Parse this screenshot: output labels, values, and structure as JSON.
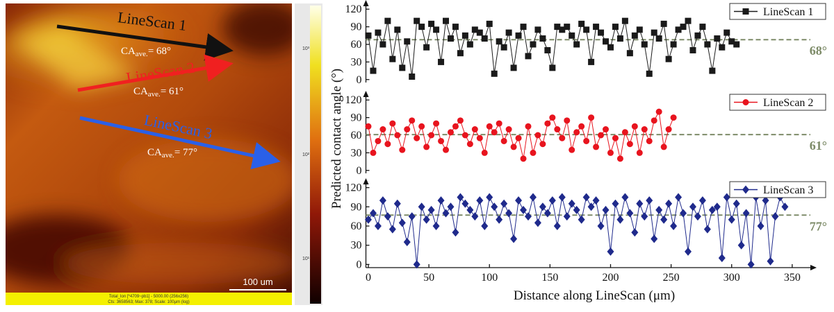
{
  "image": {
    "annotations": [
      {
        "name": "LineScan 1",
        "ca": "CA",
        "ca_sub": "ave.",
        "ca_value": "= 68°"
      },
      {
        "name": "LineScan 2",
        "ca": "CA",
        "ca_sub": "ave.",
        "ca_value": "= 61°"
      },
      {
        "name": "LineScan 3",
        "ca": "CA",
        "ca_sub": "ave.",
        "ca_value": "= 77°"
      }
    ],
    "scale_bar": "100 um",
    "colorbar_labels": [
      "10³",
      "10²",
      "10¹"
    ],
    "footer": [
      "Total_Ion [*4709~pb1] - 5000.00 (256x256)",
      "Cts: 3658563; Max: 378; Scale: 100µm (log)"
    ]
  },
  "axes": {
    "x_label": "Distance along LineScan (μm)",
    "y_label": "Predicted contact angle (°)"
  },
  "chart_data": [
    {
      "type": "line",
      "legend": "upper right",
      "xlim": [
        -2,
        365
      ],
      "ylim": [
        -5,
        125
      ],
      "yticks": [
        0,
        30,
        60,
        90,
        120
      ],
      "x": [
        0,
        4,
        8,
        12,
        16,
        20,
        24,
        28,
        32,
        36,
        40,
        44,
        48,
        52,
        56,
        60,
        64,
        68,
        72,
        76,
        80,
        84,
        88,
        92,
        96,
        100,
        104,
        108,
        112,
        116,
        120,
        124,
        128,
        132,
        136,
        140,
        144,
        148,
        152,
        156,
        160,
        164,
        168,
        172,
        176,
        180,
        184,
        188,
        192,
        196,
        200,
        204,
        208,
        212,
        216,
        220,
        224,
        228,
        232,
        236,
        240,
        244,
        248,
        252,
        256,
        260,
        264,
        268,
        272,
        276,
        280,
        284,
        288,
        292,
        296,
        300,
        304
      ],
      "series": [
        {
          "name": "LineScan 1",
          "color": "#1a1a1a",
          "marker": "square",
          "values": [
            75,
            15,
            80,
            60,
            100,
            35,
            85,
            20,
            65,
            5,
            100,
            90,
            55,
            95,
            85,
            30,
            100,
            70,
            90,
            45,
            75,
            60,
            85,
            80,
            70,
            95,
            10,
            65,
            55,
            80,
            20,
            75,
            90,
            40,
            60,
            85,
            70,
            50,
            20,
            90,
            85,
            90,
            75,
            60,
            95,
            85,
            30,
            90,
            80,
            65,
            55,
            90,
            70,
            100,
            45,
            75,
            85,
            60,
            10,
            80,
            70,
            95,
            35,
            60,
            85,
            90,
            100,
            50,
            75,
            90,
            60,
            15,
            70,
            55,
            80,
            65,
            60
          ]
        }
      ],
      "reference_line": {
        "value": 68,
        "label": "68°",
        "color": "#7d8b68"
      }
    },
    {
      "type": "line",
      "legend": "upper right",
      "xlim": [
        -2,
        365
      ],
      "ylim": [
        -5,
        125
      ],
      "yticks": [
        0,
        30,
        60,
        90,
        120
      ],
      "x": [
        0,
        4,
        8,
        12,
        16,
        20,
        24,
        28,
        32,
        36,
        40,
        44,
        48,
        52,
        56,
        60,
        64,
        68,
        72,
        76,
        80,
        84,
        88,
        92,
        96,
        100,
        104,
        108,
        112,
        116,
        120,
        124,
        128,
        132,
        136,
        140,
        144,
        148,
        152,
        156,
        160,
        164,
        168,
        172,
        176,
        180,
        184,
        188,
        192,
        196,
        200,
        204,
        208,
        212,
        216,
        220,
        224,
        228,
        232,
        236,
        240,
        244,
        248,
        252
      ],
      "series": [
        {
          "name": "LineScan 2",
          "color": "#e8141e",
          "marker": "circle",
          "values": [
            75,
            30,
            50,
            70,
            45,
            80,
            60,
            35,
            70,
            85,
            55,
            75,
            40,
            60,
            80,
            50,
            35,
            65,
            75,
            85,
            60,
            45,
            70,
            55,
            30,
            75,
            65,
            80,
            50,
            70,
            40,
            55,
            20,
            75,
            30,
            60,
            45,
            80,
            90,
            70,
            55,
            85,
            35,
            65,
            75,
            50,
            90,
            40,
            60,
            70,
            30,
            55,
            20,
            65,
            45,
            75,
            30,
            70,
            50,
            85,
            100,
            40,
            70,
            90
          ]
        }
      ],
      "reference_line": {
        "value": 61,
        "label": "61°",
        "color": "#7d8b68"
      }
    },
    {
      "type": "line",
      "legend": "upper right",
      "xlim": [
        -2,
        365
      ],
      "ylim": [
        -5,
        125
      ],
      "yticks": [
        0,
        30,
        60,
        90,
        120
      ],
      "xticks": [
        0,
        50,
        100,
        150,
        200,
        250,
        300,
        350
      ],
      "x": [
        0,
        4,
        8,
        12,
        16,
        20,
        24,
        28,
        32,
        36,
        40,
        44,
        48,
        52,
        56,
        60,
        64,
        68,
        72,
        76,
        80,
        84,
        88,
        92,
        96,
        100,
        104,
        108,
        112,
        116,
        120,
        124,
        128,
        132,
        136,
        140,
        144,
        148,
        152,
        156,
        160,
        164,
        168,
        172,
        176,
        180,
        184,
        188,
        192,
        196,
        200,
        204,
        208,
        212,
        216,
        220,
        224,
        228,
        232,
        236,
        240,
        244,
        248,
        252,
        256,
        260,
        264,
        268,
        272,
        276,
        280,
        284,
        288,
        292,
        296,
        300,
        304,
        308,
        312,
        316,
        320,
        324,
        328,
        332,
        336,
        340,
        344
      ],
      "series": [
        {
          "name": "LineScan 3",
          "color": "#1f2a8c",
          "marker": "diamond",
          "values": [
            70,
            80,
            60,
            100,
            75,
            55,
            95,
            65,
            35,
            75,
            0,
            90,
            70,
            85,
            60,
            100,
            80,
            90,
            50,
            105,
            95,
            85,
            75,
            100,
            60,
            105,
            90,
            70,
            95,
            80,
            40,
            100,
            85,
            75,
            105,
            65,
            90,
            80,
            100,
            60,
            105,
            75,
            95,
            85,
            70,
            105,
            90,
            100,
            60,
            85,
            20,
            95,
            70,
            105,
            80,
            50,
            95,
            75,
            100,
            40,
            85,
            70,
            95,
            60,
            105,
            80,
            20,
            90,
            75,
            100,
            55,
            85,
            90,
            10,
            105,
            70,
            95,
            30,
            80,
            0,
            105,
            60,
            100,
            5,
            75,
            105,
            90
          ]
        }
      ],
      "reference_line": {
        "value": 77,
        "label": "77°",
        "color": "#7d8b68"
      }
    }
  ]
}
